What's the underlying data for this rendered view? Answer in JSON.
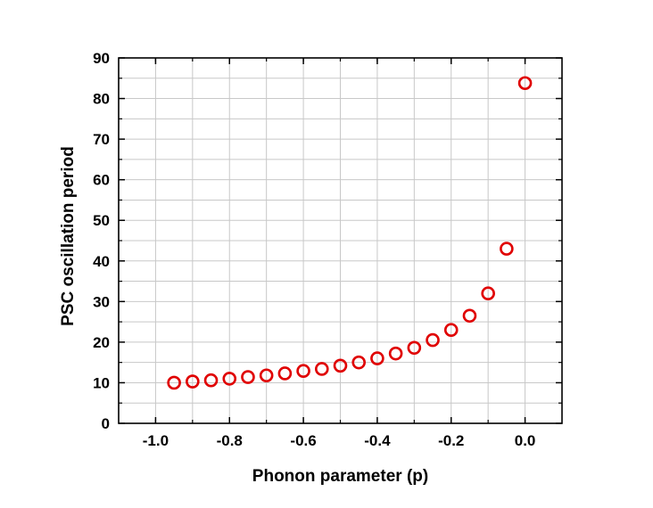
{
  "chart_data": {
    "type": "scatter",
    "xlabel": "Phonon parameter (p)",
    "ylabel": "PSC  oscillation  period",
    "xlim": [
      -1.1,
      0.1
    ],
    "ylim": [
      0,
      90
    ],
    "x_ticks": [
      -1.0,
      -0.8,
      -0.6,
      -0.4,
      -0.2,
      0.0
    ],
    "x_tick_labels": [
      "-1.0",
      "-0.8",
      "-0.6",
      "-0.4",
      "-0.2",
      "0.0"
    ],
    "y_ticks": [
      0,
      10,
      20,
      30,
      40,
      50,
      60,
      70,
      80,
      90
    ],
    "y_tick_labels": [
      "0",
      "10",
      "20",
      "30",
      "40",
      "50",
      "60",
      "70",
      "80",
      "90"
    ],
    "grid": true,
    "marker": "open-circle",
    "marker_color": "#e00000",
    "series": [
      {
        "x": [
          -0.95,
          -0.9,
          -0.85,
          -0.8,
          -0.75,
          -0.7,
          -0.65,
          -0.6,
          -0.55,
          -0.5,
          -0.45,
          -0.4,
          -0.35,
          -0.3,
          -0.25,
          -0.2,
          -0.15,
          -0.1,
          -0.05,
          0.0
        ],
        "y": [
          10.0,
          10.3,
          10.6,
          11.0,
          11.4,
          11.8,
          12.3,
          12.9,
          13.4,
          14.2,
          15.0,
          16.0,
          17.2,
          18.6,
          20.5,
          23.0,
          26.5,
          32.0,
          43.0,
          83.8
        ]
      }
    ]
  }
}
